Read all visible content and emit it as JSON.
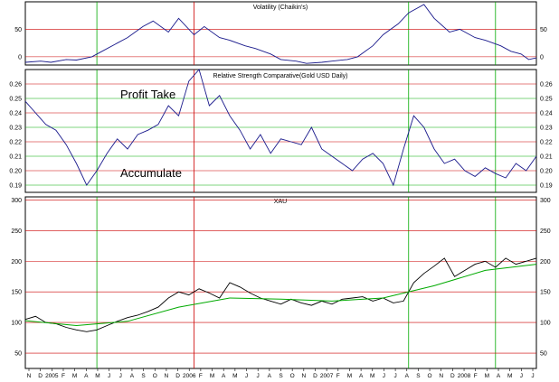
{
  "chart_data": [
    {
      "type": "line",
      "title": "Volatility (Chaikin's)",
      "ylim": [
        -15,
        100
      ],
      "yticks": [
        0,
        50
      ],
      "grid": true,
      "series": [
        {
          "name": "",
          "color": "#1a1a8c",
          "x": [
            0.0,
            0.03,
            0.05,
            0.08,
            0.1,
            0.13,
            0.15,
            0.18,
            0.2,
            0.23,
            0.25,
            0.28,
            0.3,
            0.33,
            0.35,
            0.38,
            0.4,
            0.43,
            0.45,
            0.48,
            0.5,
            0.53,
            0.55,
            0.58,
            0.6,
            0.63,
            0.65,
            0.68,
            0.7,
            0.73,
            0.75,
            0.78,
            0.8,
            0.83,
            0.85,
            0.88,
            0.9,
            0.93,
            0.95,
            0.97,
            0.985,
            1.0
          ],
          "values": [
            -10,
            -8,
            -10,
            -5,
            -6,
            0,
            10,
            25,
            35,
            55,
            65,
            45,
            70,
            40,
            55,
            35,
            30,
            20,
            15,
            5,
            -5,
            -8,
            -12,
            -10,
            -8,
            -5,
            0,
            20,
            40,
            60,
            80,
            95,
            70,
            45,
            50,
            35,
            30,
            20,
            10,
            5,
            -5,
            -2
          ]
        }
      ]
    },
    {
      "type": "line",
      "title": "Relative Strength Comparative(Gold USD Daily)",
      "ylim": [
        0.185,
        0.27
      ],
      "yticks": [
        0.19,
        0.2,
        0.21,
        0.22,
        0.23,
        0.24,
        0.25,
        0.26
      ],
      "annotations": [
        "Profit Take",
        "Accumulate"
      ],
      "series": [
        {
          "name": "",
          "color": "#1a1a8c",
          "x": [
            0.0,
            0.02,
            0.04,
            0.06,
            0.08,
            0.1,
            0.12,
            0.14,
            0.16,
            0.18,
            0.2,
            0.22,
            0.24,
            0.26,
            0.28,
            0.3,
            0.32,
            0.34,
            0.36,
            0.38,
            0.4,
            0.42,
            0.44,
            0.46,
            0.48,
            0.5,
            0.52,
            0.54,
            0.56,
            0.58,
            0.6,
            0.62,
            0.64,
            0.66,
            0.68,
            0.7,
            0.72,
            0.74,
            0.76,
            0.78,
            0.8,
            0.82,
            0.84,
            0.86,
            0.88,
            0.9,
            0.92,
            0.94,
            0.96,
            0.98,
            1.0
          ],
          "values": [
            0.248,
            0.24,
            0.232,
            0.228,
            0.218,
            0.205,
            0.19,
            0.2,
            0.212,
            0.222,
            0.215,
            0.225,
            0.228,
            0.232,
            0.245,
            0.238,
            0.262,
            0.27,
            0.245,
            0.252,
            0.238,
            0.228,
            0.215,
            0.225,
            0.212,
            0.222,
            0.22,
            0.218,
            0.23,
            0.215,
            0.21,
            0.205,
            0.2,
            0.208,
            0.212,
            0.205,
            0.19,
            0.215,
            0.238,
            0.23,
            0.215,
            0.205,
            0.208,
            0.2,
            0.196,
            0.202,
            0.198,
            0.195,
            0.205,
            0.2,
            0.21
          ]
        }
      ]
    },
    {
      "type": "line",
      "title": "XAU",
      "ylim": [
        25,
        305
      ],
      "yticks": [
        50,
        100,
        150,
        200,
        250,
        300
      ],
      "months": [
        "N",
        "D",
        "2005",
        "F",
        "M",
        "A",
        "M",
        "J",
        "J",
        "A",
        "S",
        "O",
        "N",
        "D",
        "2006",
        "F",
        "M",
        "A",
        "M",
        "J",
        "J",
        "A",
        "S",
        "O",
        "N",
        "D",
        "2007",
        "F",
        "M",
        "A",
        "M",
        "J",
        "J",
        "A",
        "S",
        "O",
        "N",
        "D",
        "2008",
        "F",
        "M",
        "A",
        "M",
        "J",
        "J"
      ],
      "series": [
        {
          "name": "",
          "color": "#000000",
          "x": [
            0.0,
            0.02,
            0.04,
            0.06,
            0.08,
            0.1,
            0.12,
            0.14,
            0.16,
            0.18,
            0.2,
            0.22,
            0.24,
            0.26,
            0.28,
            0.3,
            0.32,
            0.34,
            0.36,
            0.38,
            0.4,
            0.42,
            0.44,
            0.46,
            0.48,
            0.5,
            0.52,
            0.54,
            0.56,
            0.58,
            0.6,
            0.62,
            0.64,
            0.66,
            0.68,
            0.7,
            0.72,
            0.74,
            0.76,
            0.78,
            0.8,
            0.82,
            0.84,
            0.86,
            0.88,
            0.9,
            0.92,
            0.94,
            0.96,
            0.98,
            1.0
          ],
          "values": [
            105,
            110,
            100,
            98,
            92,
            88,
            85,
            88,
            95,
            102,
            108,
            112,
            118,
            125,
            140,
            150,
            145,
            155,
            148,
            140,
            165,
            158,
            148,
            140,
            135,
            130,
            138,
            132,
            128,
            135,
            130,
            138,
            140,
            142,
            135,
            140,
            132,
            135,
            165,
            180,
            192,
            205,
            175,
            185,
            195,
            200,
            190,
            205,
            195,
            200,
            205
          ]
        },
        {
          "name": "",
          "color": "#00aa00",
          "x": [
            0.0,
            0.1,
            0.2,
            0.3,
            0.4,
            0.5,
            0.6,
            0.7,
            0.8,
            0.9,
            1.0
          ],
          "values": [
            103,
            95,
            102,
            125,
            140,
            138,
            135,
            140,
            160,
            185,
            195
          ]
        }
      ]
    }
  ]
}
